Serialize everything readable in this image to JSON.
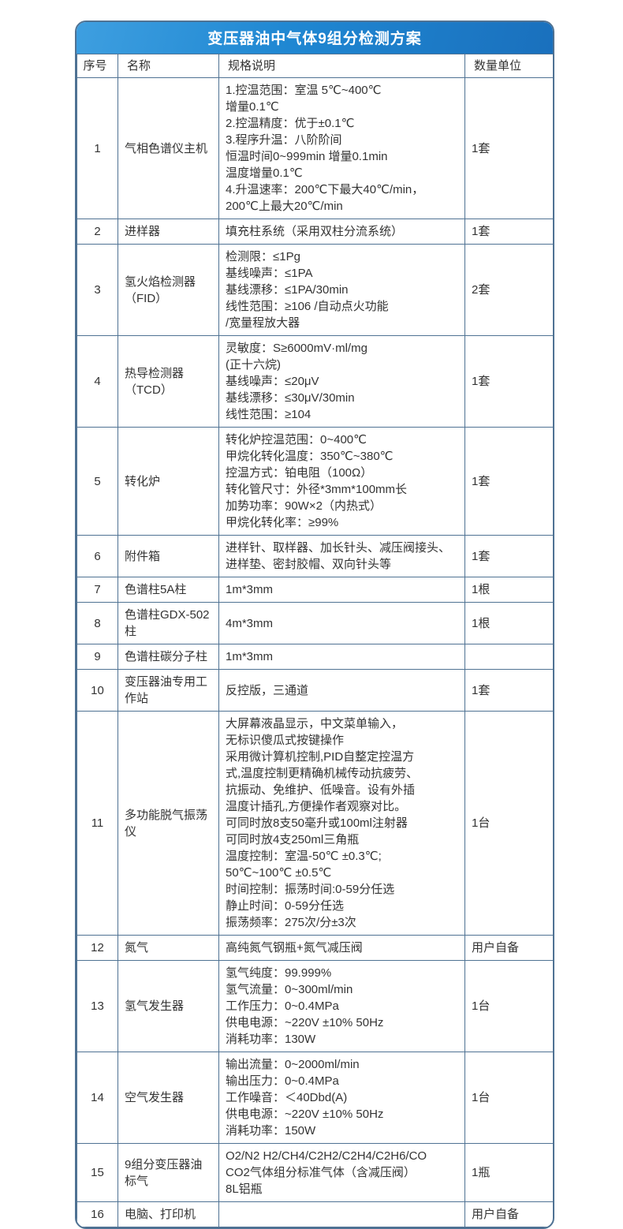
{
  "title": "变压器油中气体9组分检测方案",
  "columns": {
    "num": "序号",
    "name": "名称",
    "spec": "规格说明",
    "qty": "数量单位"
  },
  "colors": {
    "header_gradient_start": "#3e9fe0",
    "header_gradient_end": "#1a70bd",
    "grid_line": "#4f7293",
    "title_text": "#ffffff",
    "body_text": "#333333"
  },
  "rows": [
    {
      "num": "1",
      "name": "气相色谱仪主机",
      "spec": "1.控温范围：室温 5℃~400℃\n增量0.1℃\n2.控温精度：优于±0.1℃\n3.程序升温：八阶阶间\n恒温时间0~999min 增量0.1min\n温度增量0.1℃\n4.升温速率：200℃下最大40℃/min，\n200℃上最大20℃/min",
      "qty": "1套"
    },
    {
      "num": "2",
      "name": "进样器",
      "spec": "填充柱系统（采用双柱分流系统）",
      "qty": "1套"
    },
    {
      "num": "3",
      "name": "氢火焰检测器（FID）",
      "spec": "检测限：≤1Pg\n基线噪声：≤1PA\n基线漂移：≤1PA/30min\n线性范围：≥106 /自动点火功能\n/宽量程放大器",
      "qty": "2套"
    },
    {
      "num": "4",
      "name": "热导检测器（TCD）",
      "spec": "灵敏度：S≥6000mV·ml/mg\n(正十六烷)\n基线噪声：≤20μV\n基线漂移：≤30μV/30min\n线性范围：≥104",
      "qty": "1套"
    },
    {
      "num": "5",
      "name": "转化炉",
      "spec": "转化炉控温范围：0~400℃\n甲烷化转化温度：350℃~380℃\n控温方式：铂电阻（100Ω）\n转化管尺寸：外径*3mm*100mm长\n加势功率：90W×2（内热式）\n甲烷化转化率：≥99%",
      "qty": "1套"
    },
    {
      "num": "6",
      "name": "附件箱",
      "spec": "进样针、取样器、加长针头、减压阀接头、进样垫、密封胶帽、双向针头等",
      "qty": "1套"
    },
    {
      "num": "7",
      "name": "色谱柱5A柱",
      "spec": "1m*3mm",
      "qty": "1根"
    },
    {
      "num": "8",
      "name": "色谱柱GDX-502柱",
      "spec": "4m*3mm",
      "qty": "1根"
    },
    {
      "num": "9",
      "name": "色谱柱碳分子柱",
      "spec": "1m*3mm",
      "qty": ""
    },
    {
      "num": "10",
      "name": "变压器油专用工作站",
      "spec": "反控版，三通道",
      "qty": "1套"
    },
    {
      "num": "11",
      "name": "多功能脱气振荡仪",
      "spec": "大屏幕液晶显示，中文菜单输入，\n无标识傻瓜式按键操作\n采用微计算机控制,PID自整定控温方\n式,温度控制更精确机械传动抗疲劳、\n抗振动、免维护、低噪音。设有外插\n温度计插孔,方便操作者观察对比。\n可同时放8支50毫升或100ml注射器\n可同时放4支250ml三角瓶\n温度控制：室温-50℃ ±0.3℃;\n50℃~100℃ ±0.5℃\n时间控制：振荡时间:0-59分任选\n静止时间：0-59分任选\n振荡频率：275次/分±3次",
      "qty": "1台"
    },
    {
      "num": "12",
      "name": "氮气",
      "spec": "高纯氮气钢瓶+氮气减压阀",
      "qty": "用户自备"
    },
    {
      "num": "13",
      "name": "氢气发生器",
      "spec": "氢气纯度：99.999%\n氢气流量：0~300ml/min\n工作压力：0~0.4MPa\n供电电源：~220V ±10% 50Hz\n消耗功率：130W",
      "qty": "1台"
    },
    {
      "num": "14",
      "name": "空气发生器",
      "spec": "输出流量：0~2000ml/min\n输出压力：0~0.4MPa\n工作噪音：＜40Dbd(A)\n供电电源：~220V ±10% 50Hz\n消耗功率：150W",
      "qty": "1台"
    },
    {
      "num": "15",
      "name": "9组分变压器油标气",
      "spec": "O2/N2 H2/CH4/C2H2/C2H4/C2H6/CO\nCO2气体组分标准气体（含减压阀）\n8L铝瓶",
      "qty": "1瓶"
    },
    {
      "num": "16",
      "name": "电脑、打印机",
      "spec": "",
      "qty": "用户自备"
    }
  ]
}
